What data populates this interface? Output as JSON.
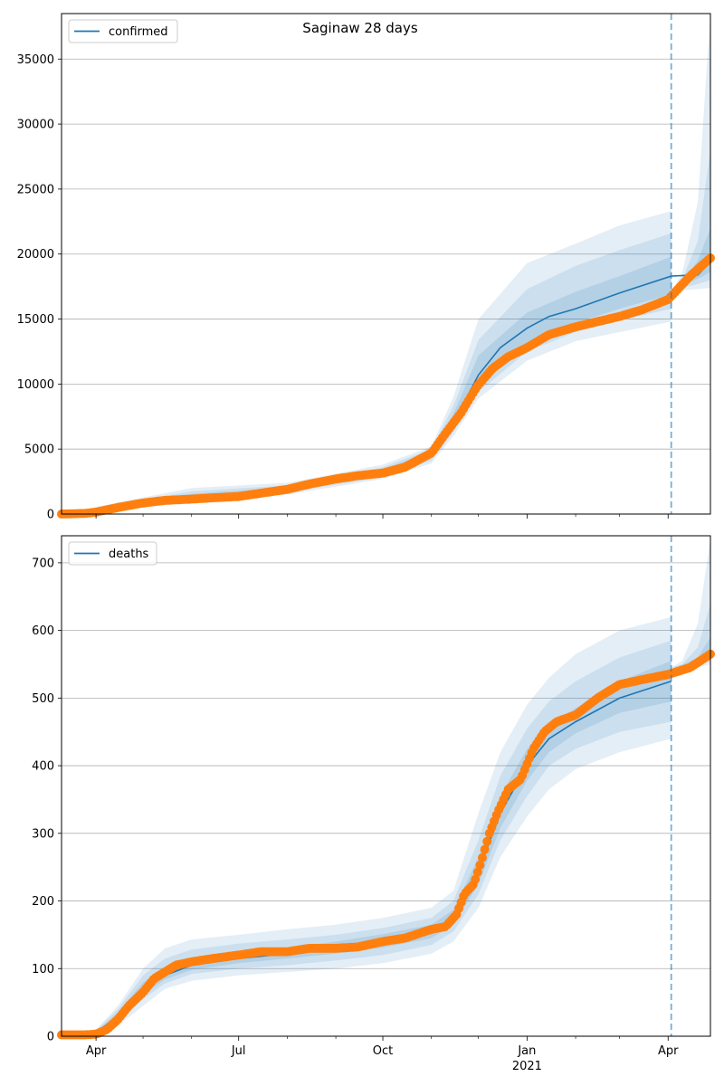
{
  "chart_data": [
    {
      "type": "line",
      "title": "Saginaw 28 days",
      "series": [
        {
          "name": "confirmed"
        }
      ],
      "x_ticks": [
        "Apr",
        "Jul",
        "Oct",
        "Jan",
        "Apr"
      ],
      "x_year_label": "2021",
      "ylim": [
        0,
        38500
      ],
      "y_ticks": [
        0,
        5000,
        10000,
        15000,
        20000,
        25000,
        30000,
        35000
      ],
      "grid": "horizontal",
      "legend": "top-left",
      "forecast_start": "2021-04-03",
      "colors": {
        "fit": "#1f77b4",
        "observed": "#ff7f0e",
        "band": "#1f77b4"
      },
      "observed": {
        "dates": [
          "2020-03-10",
          "2020-03-25",
          "2020-04-01",
          "2020-04-15",
          "2020-05-01",
          "2020-05-15",
          "2020-06-01",
          "2020-06-15",
          "2020-07-01",
          "2020-07-15",
          "2020-08-01",
          "2020-08-15",
          "2020-09-01",
          "2020-09-15",
          "2020-10-01",
          "2020-10-15",
          "2020-11-01",
          "2020-11-10",
          "2020-11-20",
          "2020-11-30",
          "2020-12-10",
          "2020-12-20",
          "2021-01-01",
          "2021-01-15",
          "2021-02-01",
          "2021-02-15",
          "2021-03-01",
          "2021-03-15",
          "2021-04-01",
          "2021-04-15",
          "2021-04-28"
        ],
        "values": [
          0,
          50,
          150,
          500,
          850,
          1050,
          1150,
          1250,
          1350,
          1600,
          1900,
          2300,
          2700,
          2950,
          3150,
          3600,
          4700,
          6200,
          7800,
          9800,
          11200,
          12100,
          12800,
          13800,
          14400,
          14800,
          15200,
          15700,
          16500,
          18300,
          19700
        ]
      },
      "fit": {
        "dates": [
          "2020-03-10",
          "2020-04-01",
          "2020-04-15",
          "2020-05-01",
          "2020-06-01",
          "2020-07-01",
          "2020-08-01",
          "2020-09-01",
          "2020-10-01",
          "2020-10-20",
          "2020-11-01",
          "2020-11-15",
          "2020-12-01",
          "2020-12-15",
          "2021-01-01",
          "2021-01-15",
          "2021-02-01",
          "2021-03-01",
          "2021-04-03",
          "2021-04-20",
          "2021-04-28"
        ],
        "values": [
          0,
          150,
          600,
          1000,
          1400,
          1600,
          1900,
          2600,
          3200,
          3700,
          4600,
          7000,
          10700,
          12800,
          14300,
          15200,
          15800,
          17000,
          18300,
          18400,
          19400
        ]
      },
      "bands": [
        {
          "dates": [
            "2020-03-10",
            "2020-04-15",
            "2020-06-01",
            "2020-08-01",
            "2020-10-01",
            "2020-11-01",
            "2020-11-15",
            "2020-12-01",
            "2021-01-01",
            "2021-02-01",
            "2021-03-01",
            "2021-04-03"
          ],
          "lower": [
            0,
            300,
            900,
            1500,
            2700,
            3900,
            6000,
            8900,
            11800,
            13300,
            14000,
            14800
          ],
          "upper": [
            0,
            900,
            2000,
            2400,
            3800,
            5200,
            9000,
            15000,
            19300,
            20800,
            22200,
            23300
          ]
        },
        {
          "dates": [
            "2020-03-10",
            "2020-04-15",
            "2020-06-01",
            "2020-08-01",
            "2020-10-01",
            "2020-11-01",
            "2020-11-15",
            "2020-12-01",
            "2021-01-01",
            "2021-02-01",
            "2021-03-01",
            "2021-04-03"
          ],
          "lower": [
            0,
            400,
            1050,
            1650,
            2850,
            4100,
            6300,
            9400,
            12500,
            14000,
            14900,
            15800
          ],
          "upper": [
            0,
            800,
            1750,
            2200,
            3600,
            5000,
            8300,
            13400,
            17300,
            19100,
            20300,
            21600
          ]
        },
        {
          "dates": [
            "2020-03-10",
            "2020-04-15",
            "2020-06-01",
            "2020-08-01",
            "2020-10-01",
            "2020-11-01",
            "2020-11-15",
            "2020-12-01",
            "2021-01-01",
            "2021-02-01",
            "2021-03-01",
            "2021-04-03"
          ],
          "lower": [
            0,
            500,
            1200,
            1750,
            3000,
            4300,
            6600,
            9900,
            13200,
            14700,
            15800,
            16900
          ],
          "upper": [
            0,
            700,
            1550,
            2050,
            3450,
            4800,
            7700,
            12200,
            15500,
            17100,
            18300,
            19800
          ]
        }
      ],
      "forecast_bands": [
        {
          "dates": [
            "2021-04-03",
            "2021-04-10",
            "2021-04-20",
            "2021-04-28"
          ],
          "lower": [
            17000,
            17200,
            17300,
            17400
          ],
          "upper": [
            17100,
            18500,
            24000,
            38500
          ]
        },
        {
          "dates": [
            "2021-04-03",
            "2021-04-10",
            "2021-04-20",
            "2021-04-28"
          ],
          "lower": [
            17100,
            17400,
            17700,
            18000
          ],
          "upper": [
            17100,
            18000,
            21000,
            28000
          ]
        },
        {
          "dates": [
            "2021-04-03",
            "2021-04-10",
            "2021-04-20",
            "2021-04-28"
          ],
          "lower": [
            17100,
            17600,
            18100,
            18600
          ],
          "upper": [
            17100,
            17800,
            19500,
            22000
          ]
        }
      ]
    },
    {
      "type": "line",
      "title": "",
      "series": [
        {
          "name": "deaths"
        }
      ],
      "x_ticks": [
        "Apr",
        "Jul",
        "Oct",
        "Jan",
        "Apr"
      ],
      "x_year_label": "2021",
      "ylim": [
        0,
        740
      ],
      "y_ticks": [
        0,
        100,
        200,
        300,
        400,
        500,
        600,
        700
      ],
      "grid": "horizontal",
      "legend": "top-left",
      "forecast_start": "2021-04-03",
      "colors": {
        "fit": "#1f77b4",
        "observed": "#ff7f0e",
        "band": "#1f77b4"
      },
      "observed": {
        "dates": [
          "2020-03-10",
          "2020-03-25",
          "2020-04-01",
          "2020-04-08",
          "2020-04-15",
          "2020-04-22",
          "2020-05-01",
          "2020-05-08",
          "2020-05-15",
          "2020-05-22",
          "2020-06-01",
          "2020-06-15",
          "2020-07-01",
          "2020-07-15",
          "2020-08-01",
          "2020-08-15",
          "2020-09-01",
          "2020-09-15",
          "2020-10-01",
          "2020-10-15",
          "2020-11-01",
          "2020-11-10",
          "2020-11-17",
          "2020-11-22",
          "2020-11-28",
          "2020-12-03",
          "2020-12-08",
          "2020-12-13",
          "2020-12-20",
          "2020-12-28",
          "2021-01-05",
          "2021-01-12",
          "2021-01-20",
          "2021-02-01",
          "2021-02-15",
          "2021-03-01",
          "2021-03-15",
          "2021-04-01",
          "2021-04-15",
          "2021-04-28"
        ],
        "values": [
          2,
          2,
          3,
          10,
          25,
          45,
          65,
          85,
          95,
          105,
          110,
          115,
          120,
          125,
          125,
          130,
          130,
          132,
          140,
          145,
          158,
          162,
          180,
          210,
          225,
          260,
          300,
          330,
          365,
          380,
          425,
          450,
          465,
          475,
          500,
          520,
          527,
          535,
          545,
          565
        ]
      },
      "fit": {
        "dates": [
          "2020-03-10",
          "2020-04-01",
          "2020-04-15",
          "2020-05-01",
          "2020-05-15",
          "2020-06-01",
          "2020-07-01",
          "2020-08-01",
          "2020-09-01",
          "2020-10-01",
          "2020-11-01",
          "2020-11-15",
          "2020-12-01",
          "2020-12-15",
          "2021-01-01",
          "2021-01-15",
          "2021-02-01",
          "2021-03-01",
          "2021-04-03"
        ],
        "values": [
          2,
          5,
          30,
          70,
          90,
          105,
          115,
          122,
          130,
          140,
          155,
          175,
          245,
          330,
          400,
          440,
          465,
          500,
          525
        ]
      },
      "bands": [
        {
          "dates": [
            "2020-03-10",
            "2020-04-01",
            "2020-04-15",
            "2020-05-01",
            "2020-05-15",
            "2020-06-01",
            "2020-07-01",
            "2020-08-01",
            "2020-09-01",
            "2020-10-01",
            "2020-11-01",
            "2020-11-15",
            "2020-12-01",
            "2020-12-15",
            "2021-01-01",
            "2021-01-15",
            "2021-02-01",
            "2021-03-01",
            "2021-04-03"
          ],
          "lower": [
            0,
            3,
            15,
            45,
            70,
            82,
            90,
            95,
            100,
            108,
            122,
            140,
            190,
            265,
            325,
            365,
            395,
            420,
            440
          ],
          "upper": [
            3,
            10,
            45,
            100,
            130,
            143,
            150,
            158,
            165,
            175,
            190,
            215,
            330,
            420,
            490,
            530,
            565,
            600,
            620
          ]
        },
        {
          "dates": [
            "2020-03-10",
            "2020-04-01",
            "2020-04-15",
            "2020-05-01",
            "2020-05-15",
            "2020-06-01",
            "2020-07-01",
            "2020-08-01",
            "2020-09-01",
            "2020-10-01",
            "2020-11-01",
            "2020-11-15",
            "2020-12-01",
            "2020-12-15",
            "2021-01-01",
            "2021-01-15",
            "2021-02-01",
            "2021-03-01",
            "2021-04-03"
          ],
          "lower": [
            1,
            4,
            20,
            55,
            78,
            92,
            100,
            105,
            112,
            120,
            135,
            155,
            210,
            290,
            355,
            400,
            425,
            450,
            465
          ],
          "upper": [
            3,
            8,
            40,
            90,
            115,
            128,
            137,
            143,
            150,
            160,
            175,
            200,
            290,
            385,
            455,
            495,
            525,
            560,
            585
          ]
        },
        {
          "dates": [
            "2020-03-10",
            "2020-04-01",
            "2020-04-15",
            "2020-05-01",
            "2020-05-15",
            "2020-06-01",
            "2020-07-01",
            "2020-08-01",
            "2020-09-01",
            "2020-10-01",
            "2020-11-01",
            "2020-11-15",
            "2020-12-01",
            "2020-12-15",
            "2021-01-01",
            "2021-01-15",
            "2021-02-01",
            "2021-03-01",
            "2021-04-03"
          ],
          "lower": [
            1,
            4,
            25,
            62,
            84,
            98,
            108,
            115,
            122,
            131,
            145,
            165,
            225,
            308,
            378,
            420,
            448,
            478,
            495
          ],
          "upper": [
            3,
            7,
            35,
            80,
            100,
            115,
            125,
            131,
            140,
            151,
            165,
            187,
            265,
            355,
            425,
            462,
            485,
            525,
            555
          ]
        }
      ],
      "forecast_bands": [
        {
          "dates": [
            "2021-04-03",
            "2021-04-10",
            "2021-04-20",
            "2021-04-28"
          ],
          "lower": [
            545,
            543,
            545,
            550
          ],
          "upper": [
            545,
            555,
            610,
            735
          ]
        },
        {
          "dates": [
            "2021-04-03",
            "2021-04-10",
            "2021-04-20",
            "2021-04-28"
          ],
          "lower": [
            545,
            546,
            550,
            555
          ],
          "upper": [
            545,
            550,
            575,
            640
          ]
        },
        {
          "dates": [
            "2021-04-03",
            "2021-04-10",
            "2021-04-20",
            "2021-04-28"
          ],
          "lower": [
            545,
            548,
            555,
            562
          ],
          "upper": [
            545,
            549,
            560,
            590
          ]
        }
      ]
    }
  ]
}
